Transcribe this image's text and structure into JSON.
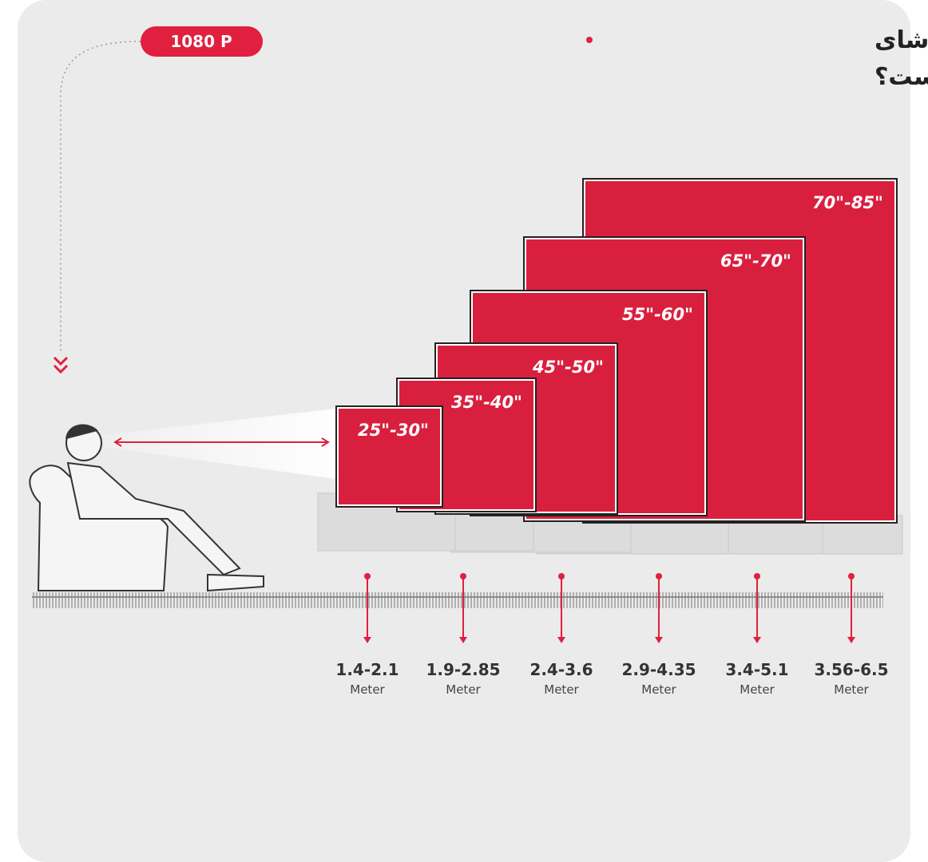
{
  "badge": "1080 P",
  "title": [
    "بهترین فاصله تماشای",
    "تلویزیون چند متراست؟"
  ],
  "tvs": [
    {
      "size": "25\"-30\"",
      "distance": "1.4-2.1",
      "unit": "Meter"
    },
    {
      "size": "35\"-40\"",
      "distance": "1.9-2.85",
      "unit": "Meter"
    },
    {
      "size": "45\"-50\"",
      "distance": "2.4-3.6",
      "unit": "Meter"
    },
    {
      "size": "55\"-60\"",
      "distance": "2.9-4.35",
      "unit": "Meter"
    },
    {
      "size": "65\"-70\"",
      "distance": "3.4-5.1",
      "unit": "Meter"
    },
    {
      "size": "70\"-85\"",
      "distance": "3.56-6.5",
      "unit": "Meter"
    }
  ]
}
